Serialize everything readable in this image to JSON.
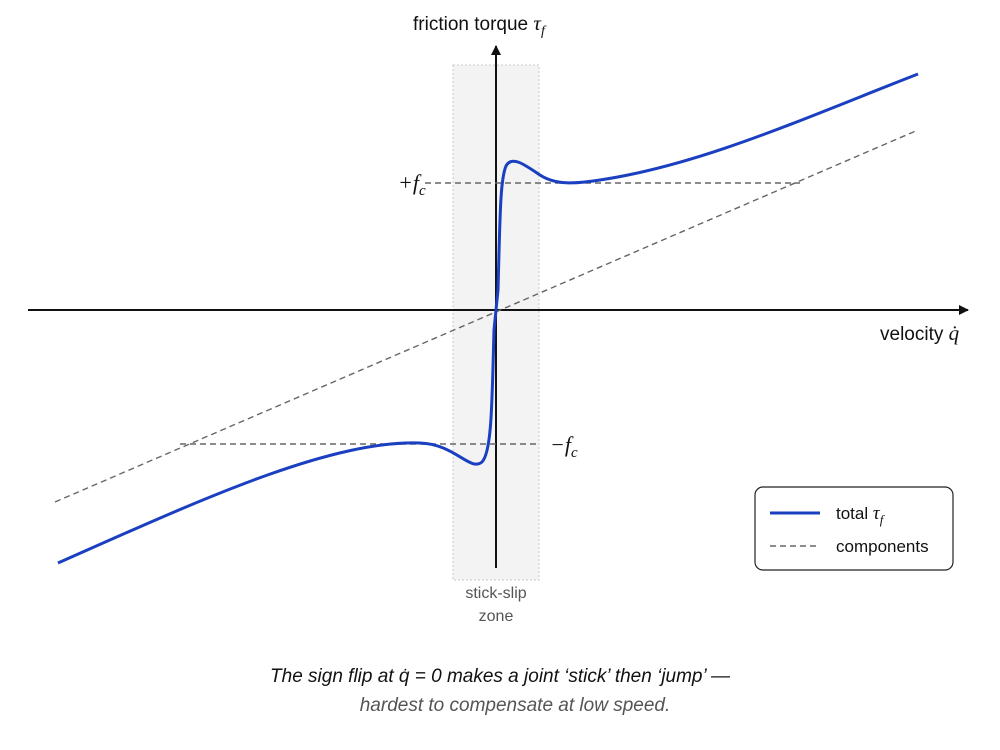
{
  "y_axis": {
    "label": "friction torque",
    "symbol": "τ",
    "subscript": "f"
  },
  "x_axis": {
    "label": "velocity",
    "symbol": "q̇"
  },
  "levels": {
    "plus": {
      "symbol": "+f",
      "subscript": "c"
    },
    "minus": {
      "symbol": "−f",
      "subscript": "c"
    }
  },
  "zone_label": [
    "stick-slip",
    "zone"
  ],
  "legend": [
    {
      "label": "total",
      "symbol": "τ",
      "subscript": "f"
    },
    {
      "label": "components"
    }
  ],
  "caption": [
    "The sign flip at q̇ = 0 makes a joint ‘stick’ then ‘jump’ —",
    "hardest to compensate at low speed."
  ]
}
